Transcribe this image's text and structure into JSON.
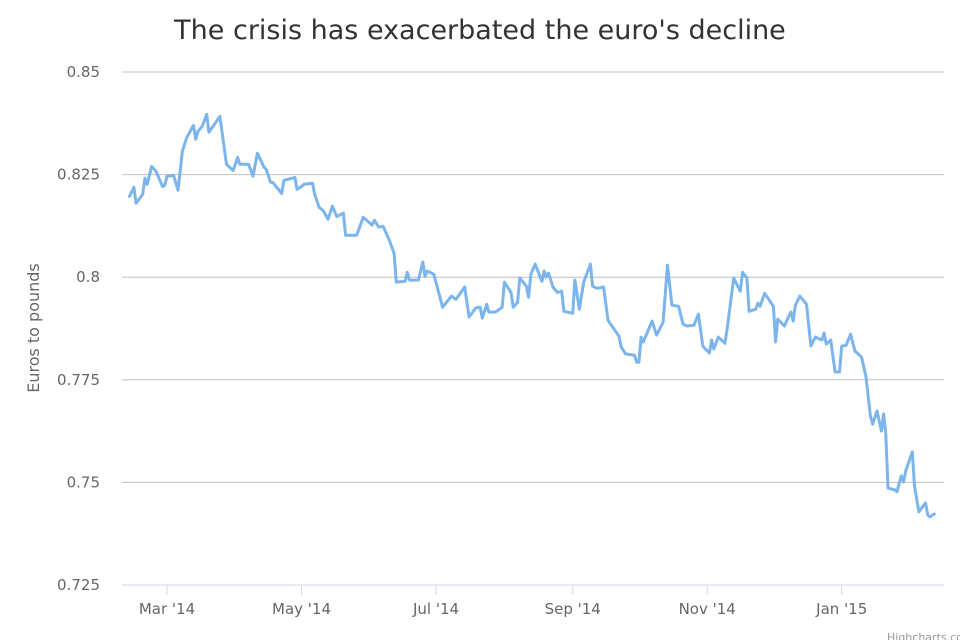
{
  "chart_data": {
    "type": "line",
    "title": "The crisis has exacerbated the euro's decline",
    "xlabel": "",
    "ylabel": "Euros to pounds",
    "x_unit": "days since 2014-03-01",
    "ylim": [
      0.725,
      0.85
    ],
    "grid": true,
    "legend": "none",
    "credit": "Highcharts.com",
    "line_color": "#7cb5ec",
    "yticks": [
      {
        "value": 0.725,
        "label": "0.725"
      },
      {
        "value": 0.75,
        "label": "0.75"
      },
      {
        "value": 0.775,
        "label": "0.775"
      },
      {
        "value": 0.8,
        "label": "0.8"
      },
      {
        "value": 0.825,
        "label": "0.825"
      },
      {
        "value": 0.85,
        "label": "0.85"
      }
    ],
    "xticks": [
      {
        "value": 0,
        "label": "Mar '14"
      },
      {
        "value": 61,
        "label": "May '14"
      },
      {
        "value": 122,
        "label": "Jul '14"
      },
      {
        "value": 184,
        "label": "Sep '14"
      },
      {
        "value": 245,
        "label": "Nov '14"
      },
      {
        "value": 306,
        "label": "Jan '15"
      }
    ],
    "series": [
      {
        "name": "Euros to pounds",
        "x": [
          -17,
          -15,
          -14,
          -11,
          -10,
          -9,
          -7,
          -5,
          -2,
          -1,
          0,
          3,
          5,
          7,
          9,
          12,
          13,
          14,
          16,
          18,
          19,
          24,
          27,
          30,
          32,
          33,
          37,
          39,
          41,
          44,
          45,
          47,
          48,
          52,
          53,
          58,
          59,
          61,
          62,
          66,
          67,
          69,
          71,
          73,
          75,
          77,
          80,
          81,
          86,
          89,
          93,
          94,
          96,
          98,
          101,
          103,
          104,
          108,
          109,
          110,
          114,
          116,
          117,
          118,
          121,
          125,
          129,
          131,
          135,
          137,
          140,
          142,
          143,
          145,
          146,
          149,
          152,
          153,
          156,
          157,
          159,
          160,
          163,
          164,
          165,
          167,
          170,
          171,
          172,
          173,
          175,
          177,
          179,
          180,
          184,
          185,
          187,
          189,
          192,
          193,
          195,
          198,
          200,
          205,
          206,
          208,
          212,
          213,
          214,
          215,
          216,
          220,
          222,
          225,
          227,
          229,
          232,
          234,
          235,
          236,
          239,
          241,
          243,
          246,
          247,
          248,
          250,
          253,
          254,
          257,
          260,
          261,
          263,
          264,
          267,
          268,
          269,
          271,
          275,
          276,
          277,
          280,
          282,
          283,
          284,
          285,
          287,
          290,
          292,
          294,
          297,
          298,
          299,
          301,
          303,
          305,
          306,
          308,
          310,
          312,
          315,
          316,
          317,
          319,
          320,
          322,
          324,
          325,
          326,
          327,
          330,
          331,
          333,
          334,
          335,
          338,
          339,
          341,
          344,
          345,
          346,
          348
        ],
        "y": [
          0.8197,
          0.8219,
          0.818,
          0.8202,
          0.8241,
          0.8226,
          0.827,
          0.8258,
          0.8221,
          0.8224,
          0.8246,
          0.8248,
          0.8212,
          0.8307,
          0.8341,
          0.837,
          0.8336,
          0.8355,
          0.8368,
          0.8397,
          0.8353,
          0.8392,
          0.8275,
          0.826,
          0.8292,
          0.8275,
          0.8275,
          0.8246,
          0.8302,
          0.8268,
          0.8263,
          0.8231,
          0.8231,
          0.8204,
          0.8236,
          0.8243,
          0.8214,
          0.8221,
          0.8226,
          0.8229,
          0.8202,
          0.817,
          0.8161,
          0.8141,
          0.8173,
          0.8148,
          0.8156,
          0.8102,
          0.8102,
          0.8146,
          0.8127,
          0.8139,
          0.8122,
          0.8124,
          0.8088,
          0.8058,
          0.7988,
          0.799,
          0.8012,
          0.7993,
          0.7993,
          0.8037,
          0.8002,
          0.8015,
          0.8007,
          0.7927,
          0.7954,
          0.7946,
          0.7976,
          0.7903,
          0.7925,
          0.7927,
          0.79,
          0.7934,
          0.7915,
          0.7915,
          0.7927,
          0.7988,
          0.7963,
          0.7927,
          0.7939,
          0.7998,
          0.7978,
          0.7951,
          0.8007,
          0.8032,
          0.799,
          0.8015,
          0.8,
          0.801,
          0.7976,
          0.7963,
          0.7966,
          0.7917,
          0.7912,
          0.7993,
          0.7922,
          0.7988,
          0.8032,
          0.7978,
          0.7973,
          0.7976,
          0.7895,
          0.7856,
          0.783,
          0.7813,
          0.781,
          0.7793,
          0.7793,
          0.7854,
          0.7842,
          0.7893,
          0.7859,
          0.789,
          0.8029,
          0.7932,
          0.7929,
          0.7886,
          0.7883,
          0.7881,
          0.7883,
          0.791,
          0.7832,
          0.7815,
          0.7847,
          0.7825,
          0.7854,
          0.7839,
          0.7873,
          0.7998,
          0.7966,
          0.8012,
          0.7998,
          0.7917,
          0.7922,
          0.7937,
          0.7929,
          0.7961,
          0.7929,
          0.7842,
          0.7898,
          0.7881,
          0.7905,
          0.7915,
          0.7893,
          0.7932,
          0.7954,
          0.7934,
          0.7832,
          0.7854,
          0.7847,
          0.7864,
          0.7837,
          0.7847,
          0.7769,
          0.7769,
          0.7832,
          0.7834,
          0.7861,
          0.782,
          0.7805,
          0.7781,
          0.7757,
          0.7662,
          0.7642,
          0.7674,
          0.7625,
          0.7667,
          0.7618,
          0.7486,
          0.7482,
          0.7477,
          0.7516,
          0.7501,
          0.7528,
          0.7574,
          0.7491,
          0.7428,
          0.745,
          0.7421,
          0.7416,
          0.7423
        ]
      }
    ]
  }
}
